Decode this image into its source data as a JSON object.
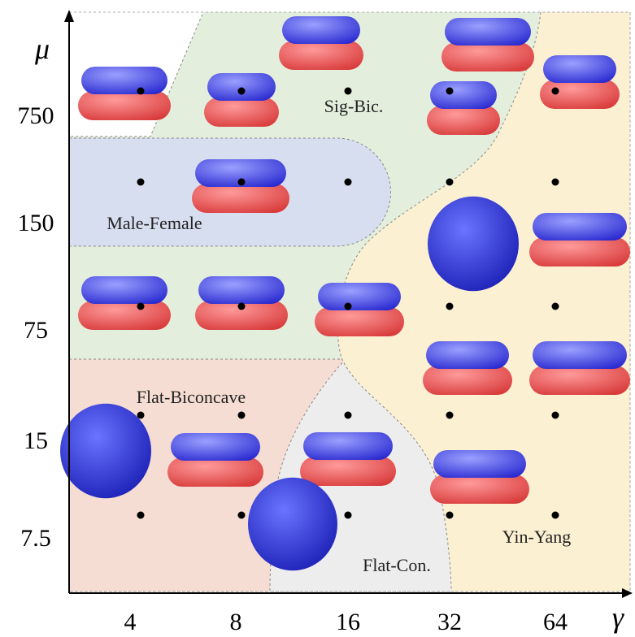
{
  "axes": {
    "x_label": "γ",
    "y_label": "μ",
    "x_ticks": [
      "4",
      "8",
      "16",
      "32",
      "64"
    ],
    "y_ticks": [
      "750",
      "150",
      "75",
      "15",
      "7.5"
    ]
  },
  "regions": {
    "sig_bic": "Sig-Bic.",
    "male_female": "Male-Female",
    "flat_biconcave": "Flat-Biconcave",
    "flat_con": "Flat-Con.",
    "yin_yang": "Yin-Yang"
  }
}
